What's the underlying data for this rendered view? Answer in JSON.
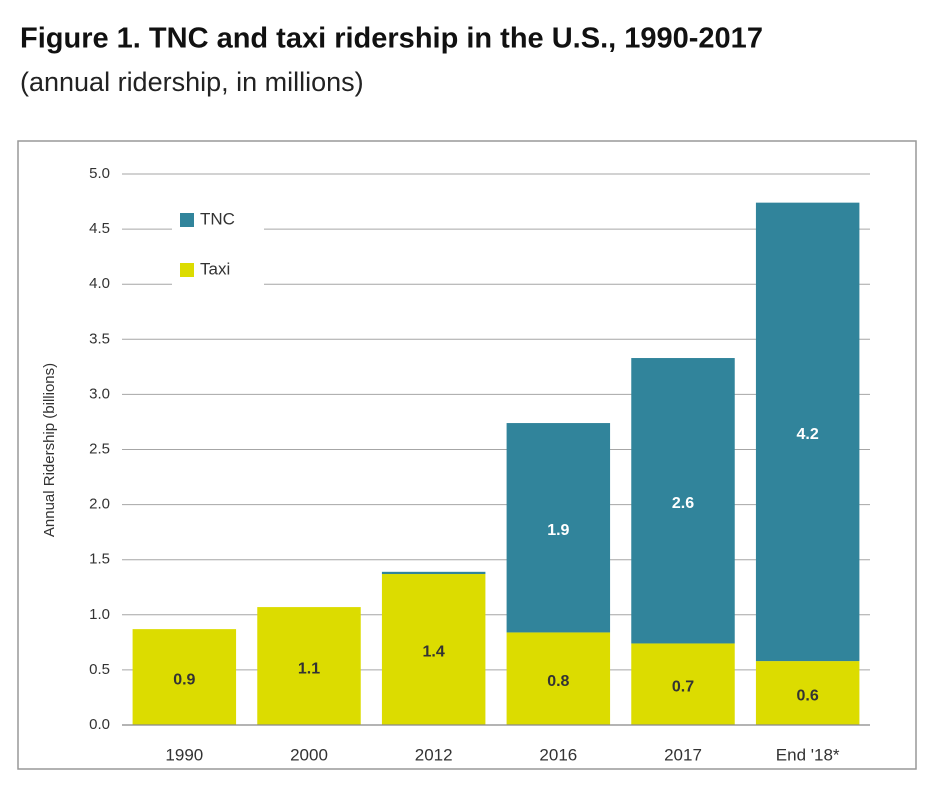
{
  "chart_data": {
    "type": "stacked_bar",
    "title": "Figure 1.  TNC and taxi ridership in the U.S., 1990-2017",
    "subtitle": "(annual ridership, in millions)",
    "y_label": "Annual Ridership (billions)",
    "categories": [
      "1990",
      "2000",
      "2012",
      "2016",
      "2017",
      "End '18*"
    ],
    "series": [
      {
        "name": "Taxi",
        "color": "#dcdc00",
        "label_color": "#333333",
        "values": [
          0.87,
          1.07,
          1.37,
          0.84,
          0.74,
          0.58
        ],
        "value_labels": [
          "0.9",
          "1.1",
          "1.4",
          "0.8",
          "0.7",
          "0.6"
        ]
      },
      {
        "name": "TNC",
        "color": "#31849b",
        "label_color": "#ffffff",
        "values": [
          null,
          null,
          0.02,
          1.9,
          2.59,
          4.16
        ],
        "value_labels": [
          null,
          null,
          null,
          "1.9",
          "2.6",
          "4.2"
        ]
      }
    ],
    "ylim": [
      0,
      5
    ],
    "yticks": [
      {
        "value": 0,
        "label": "0.0"
      },
      0.5,
      {
        "value": 1,
        "label": "1.0"
      },
      1.5,
      {
        "value": 2,
        "label": "2.0"
      },
      2.5,
      {
        "value": 3,
        "label": "3.0"
      },
      3.5,
      {
        "value": 4,
        "label": "4.0"
      },
      4.5,
      {
        "value": 5,
        "label": "5.0"
      }
    ],
    "grid": true,
    "legend": "upper left"
  }
}
